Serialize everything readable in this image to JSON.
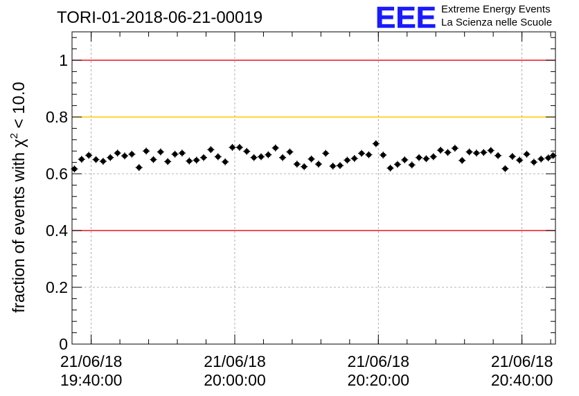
{
  "chart_data": {
    "type": "scatter",
    "title": "TORI-01-2018-06-21-00019",
    "ylabel_main": "fraction of events with χ",
    "ylabel_sup": "2",
    "ylabel_tail": " < 10.0",
    "xlabel": "",
    "x_min": "2018-06-21T19:37:20",
    "x_max": "2018-06-21T20:44:40",
    "ylim": [
      0,
      1.1
    ],
    "y_ticks": [
      0,
      0.2,
      0.4,
      0.6,
      0.8,
      1
    ],
    "y_tick_labels": [
      "0",
      "0.2",
      "0.4",
      "0.6",
      "0.8",
      "1"
    ],
    "x_ticks": [
      "2018-06-21T19:40:00",
      "2018-06-21T20:00:00",
      "2018-06-21T20:20:00",
      "2018-06-21T20:40:00"
    ],
    "x_tick_labels": [
      [
        "21/06/18",
        "19:40:00"
      ],
      [
        "21/06/18",
        "20:00:00"
      ],
      [
        "21/06/18",
        "20:20:00"
      ],
      [
        "21/06/18",
        "20:40:00"
      ]
    ],
    "grid": true,
    "reference_lines": [
      {
        "y": 1.0,
        "color": "#e8141e"
      },
      {
        "y": 0.8,
        "color": "#ffc800"
      },
      {
        "y": 0.4,
        "color": "#e8141e"
      }
    ],
    "series": [
      {
        "x": [
          "2018-06-21T19:37:40",
          "2018-06-21T19:38:40",
          "2018-06-21T19:39:40",
          "2018-06-21T19:40:40",
          "2018-06-21T19:41:40",
          "2018-06-21T19:42:40",
          "2018-06-21T19:43:40",
          "2018-06-21T19:44:40",
          "2018-06-21T19:45:40",
          "2018-06-21T19:46:40",
          "2018-06-21T19:47:40",
          "2018-06-21T19:48:40",
          "2018-06-21T19:49:40",
          "2018-06-21T19:50:40",
          "2018-06-21T19:51:40",
          "2018-06-21T19:52:40",
          "2018-06-21T19:53:40",
          "2018-06-21T19:54:40",
          "2018-06-21T19:55:40",
          "2018-06-21T19:56:40",
          "2018-06-21T19:57:40",
          "2018-06-21T19:58:40",
          "2018-06-21T19:59:40",
          "2018-06-21T20:00:40",
          "2018-06-21T20:01:40",
          "2018-06-21T20:02:40",
          "2018-06-21T20:03:40",
          "2018-06-21T20:04:40",
          "2018-06-21T20:05:40",
          "2018-06-21T20:06:40",
          "2018-06-21T20:07:40",
          "2018-06-21T20:08:40",
          "2018-06-21T20:09:40",
          "2018-06-21T20:10:40",
          "2018-06-21T20:11:40",
          "2018-06-21T20:12:40",
          "2018-06-21T20:13:40",
          "2018-06-21T20:14:40",
          "2018-06-21T20:15:40",
          "2018-06-21T20:16:40",
          "2018-06-21T20:17:40",
          "2018-06-21T20:18:40",
          "2018-06-21T20:19:40",
          "2018-06-21T20:20:40",
          "2018-06-21T20:21:40",
          "2018-06-21T20:22:40",
          "2018-06-21T20:23:40",
          "2018-06-21T20:24:40",
          "2018-06-21T20:25:40",
          "2018-06-21T20:26:40",
          "2018-06-21T20:27:40",
          "2018-06-21T20:28:40",
          "2018-06-21T20:29:40",
          "2018-06-21T20:30:40",
          "2018-06-21T20:31:40",
          "2018-06-21T20:32:40",
          "2018-06-21T20:33:40",
          "2018-06-21T20:34:40",
          "2018-06-21T20:35:40",
          "2018-06-21T20:36:40",
          "2018-06-21T20:37:40",
          "2018-06-21T20:38:40",
          "2018-06-21T20:39:40",
          "2018-06-21T20:40:40",
          "2018-06-21T20:41:40",
          "2018-06-21T20:42:40",
          "2018-06-21T20:43:40",
          "2018-06-21T20:44:20"
        ],
        "y": [
          0.617,
          0.651,
          0.665,
          0.65,
          0.644,
          0.657,
          0.673,
          0.663,
          0.669,
          0.622,
          0.68,
          0.65,
          0.677,
          0.643,
          0.669,
          0.673,
          0.645,
          0.648,
          0.657,
          0.685,
          0.66,
          0.642,
          0.693,
          0.693,
          0.679,
          0.657,
          0.66,
          0.667,
          0.691,
          0.657,
          0.677,
          0.634,
          0.625,
          0.652,
          0.634,
          0.672,
          0.627,
          0.629,
          0.648,
          0.654,
          0.672,
          0.667,
          0.706,
          0.666,
          0.62,
          0.633,
          0.649,
          0.631,
          0.657,
          0.653,
          0.66,
          0.683,
          0.675,
          0.69,
          0.647,
          0.677,
          0.673,
          0.675,
          0.682,
          0.664,
          0.618,
          0.661,
          0.648,
          0.669,
          0.641,
          0.652,
          0.656,
          0.664
        ],
        "yerr": 0.012
      }
    ],
    "marker_color": "#000000"
  },
  "logo": {
    "letters": "EEE",
    "line1": "Extreme Energy Events",
    "line2": "La Scienza nelle Scuole",
    "color": "#1a1aff"
  }
}
